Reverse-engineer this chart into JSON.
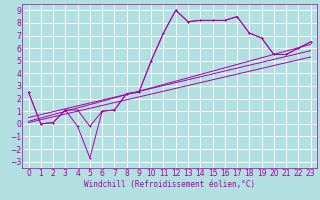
{
  "xlabel": "Windchill (Refroidissement éolien,°C)",
  "background_color": "#b2e0e0",
  "grid_color": "#ffffff",
  "line_color": "#aa00aa",
  "xlim": [
    -0.5,
    23.5
  ],
  "ylim": [
    -3.5,
    9.5
  ],
  "xticks": [
    0,
    1,
    2,
    3,
    4,
    5,
    6,
    7,
    8,
    9,
    10,
    11,
    12,
    13,
    14,
    15,
    16,
    17,
    18,
    19,
    20,
    21,
    22,
    23
  ],
  "yticks": [
    -3,
    -2,
    -1,
    0,
    1,
    2,
    3,
    4,
    5,
    6,
    7,
    8,
    9
  ],
  "line1_x": [
    0,
    1,
    2,
    3,
    4,
    5,
    6,
    7,
    8,
    9,
    10,
    11,
    12,
    13,
    14,
    15,
    16,
    17,
    18,
    19,
    20,
    21,
    22,
    23
  ],
  "line1_y": [
    2.5,
    0.0,
    0.1,
    1.1,
    1.1,
    -0.2,
    1.0,
    1.1,
    2.4,
    2.5,
    5.0,
    7.2,
    9.0,
    8.1,
    8.2,
    8.2,
    8.2,
    8.5,
    7.2,
    6.8,
    5.5,
    5.5,
    6.0,
    6.5
  ],
  "line2_x": [
    0,
    1,
    2,
    3,
    4,
    5,
    6,
    7,
    8,
    9,
    10,
    11,
    12,
    13,
    14,
    15,
    16,
    17,
    18,
    19,
    20,
    21,
    22,
    23
  ],
  "line2_y": [
    2.5,
    0.0,
    0.1,
    1.1,
    -0.2,
    -2.7,
    1.0,
    1.1,
    2.4,
    2.5,
    5.0,
    7.2,
    9.0,
    8.1,
    8.2,
    8.2,
    8.2,
    8.5,
    7.2,
    6.8,
    5.5,
    5.5,
    6.0,
    6.5
  ],
  "line3_x": [
    0,
    23
  ],
  "line3_y": [
    0.2,
    6.3
  ],
  "line4_x": [
    0,
    23
  ],
  "line4_y": [
    0.5,
    5.8
  ],
  "line5_x": [
    0,
    23
  ],
  "line5_y": [
    0.1,
    5.3
  ],
  "tick_fontsize": 5.5,
  "xlabel_fontsize": 5.5
}
